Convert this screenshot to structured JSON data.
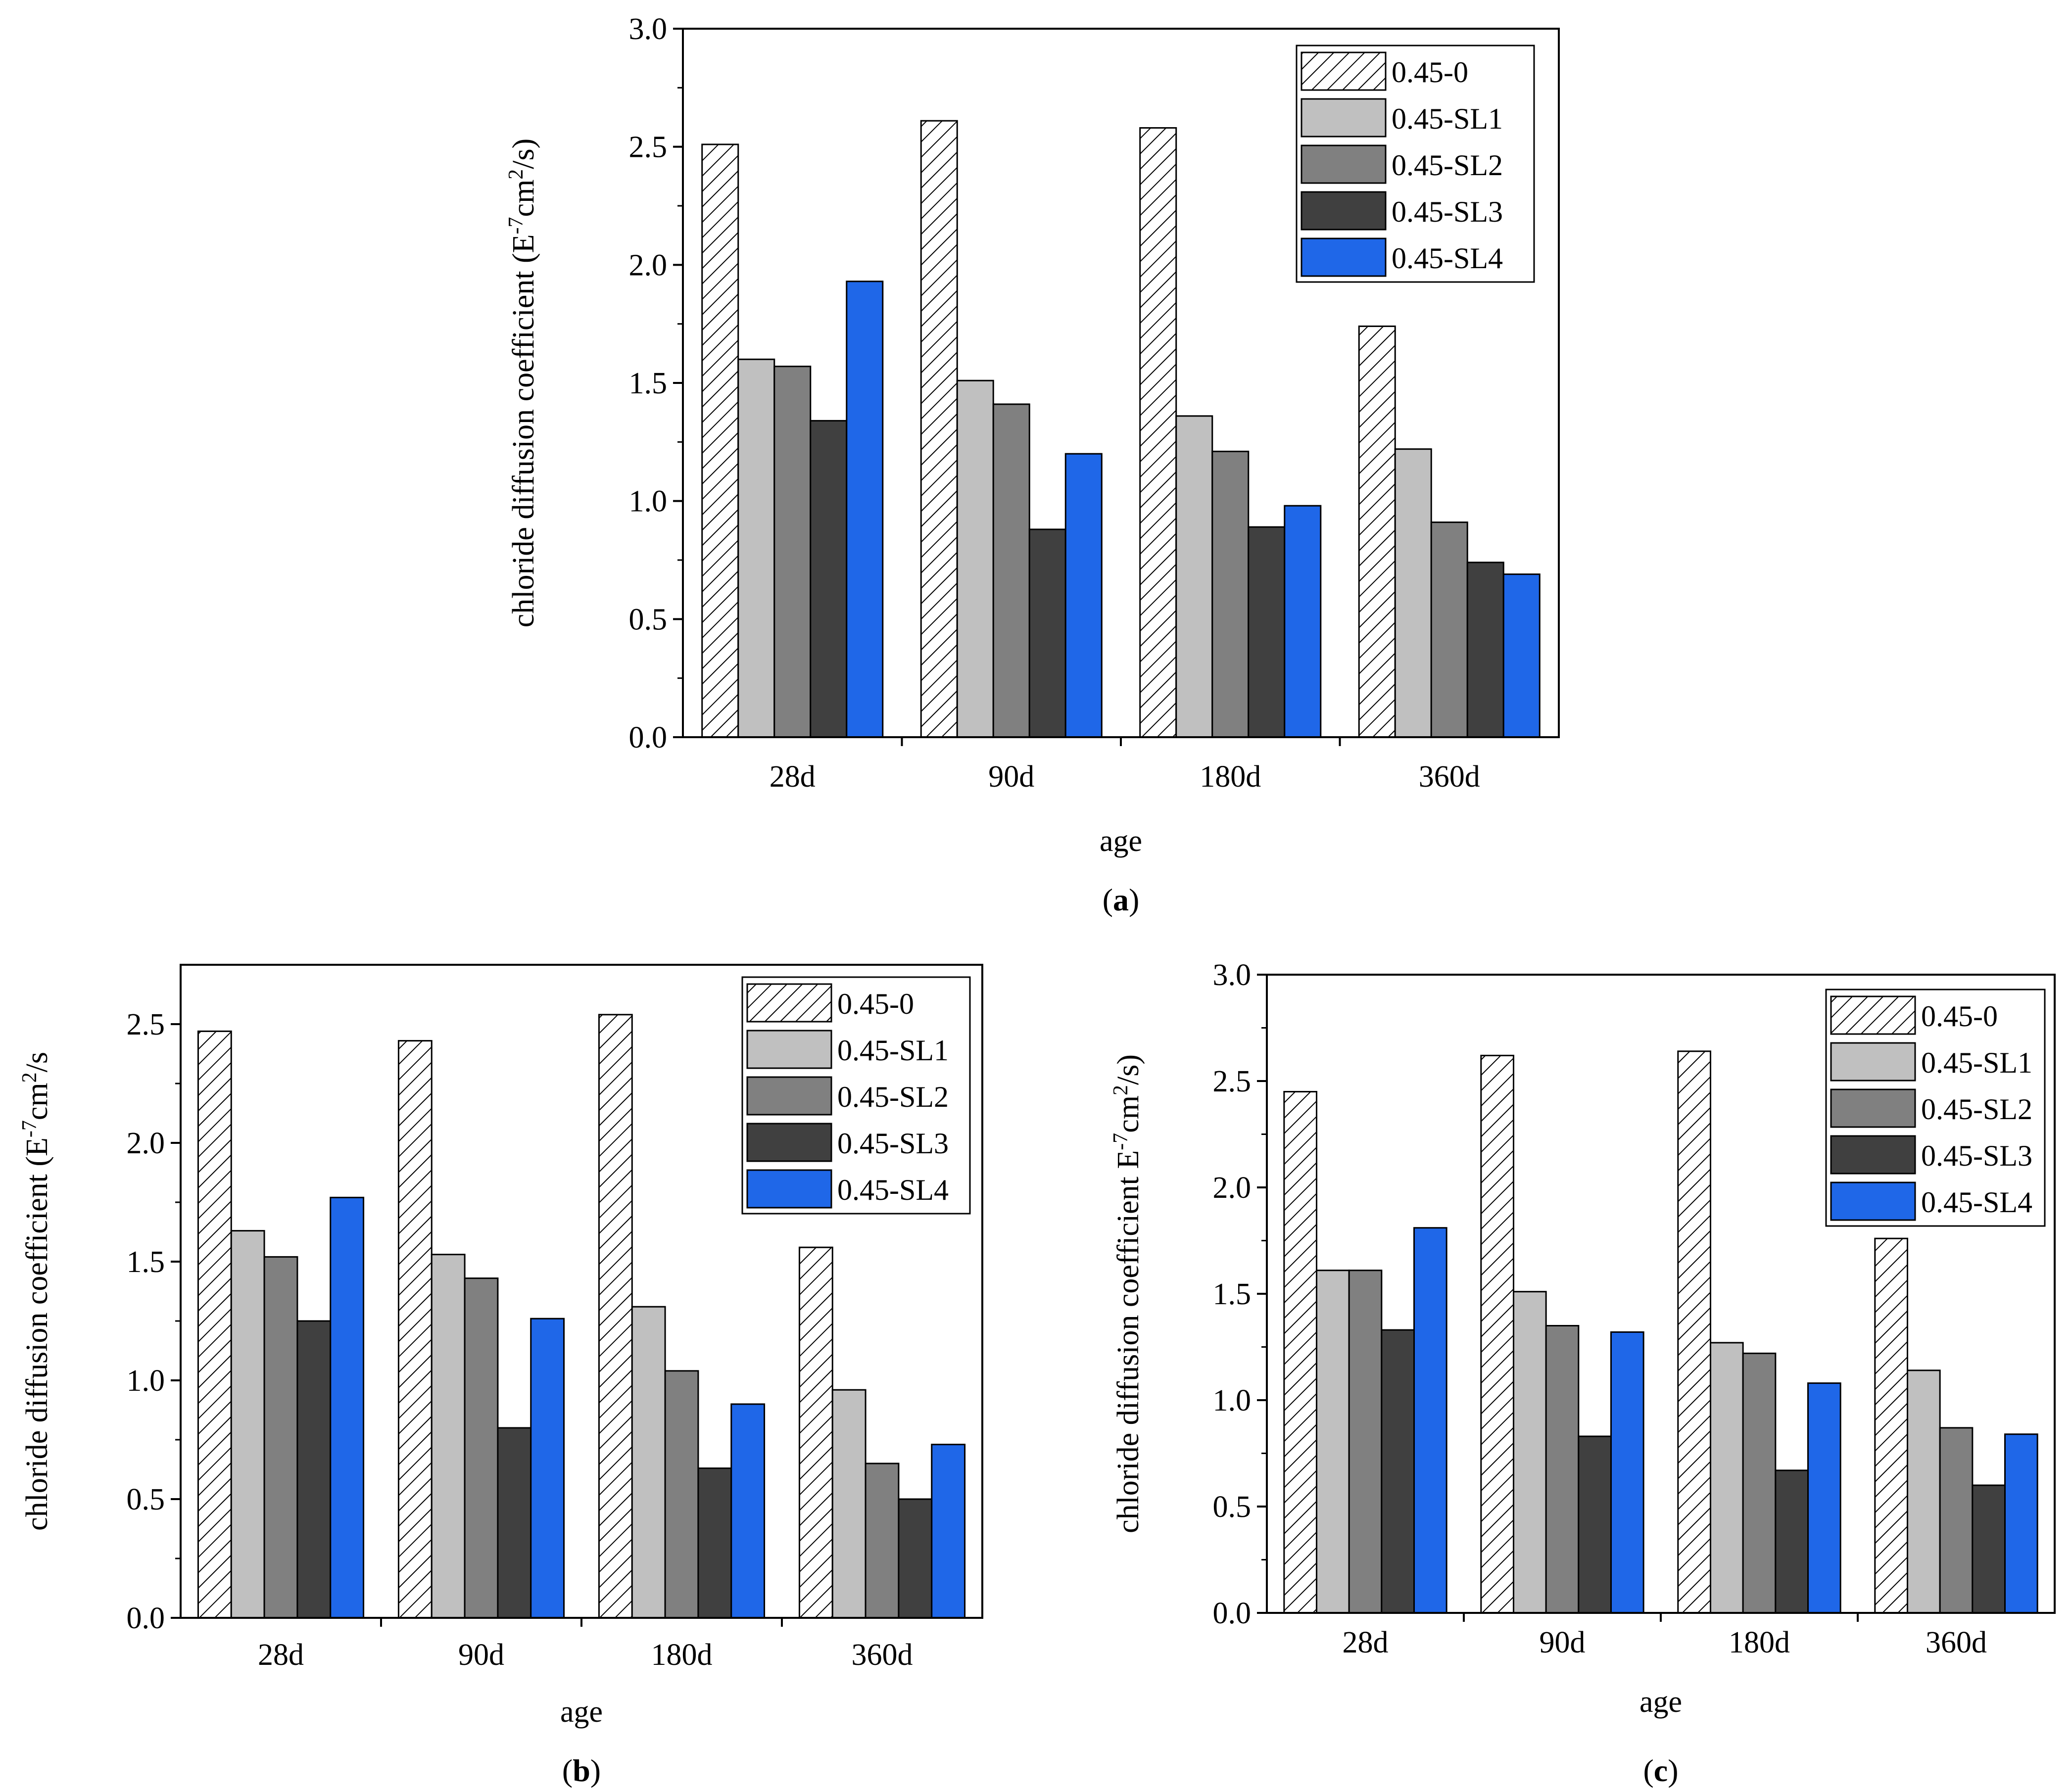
{
  "figure": {
    "legend_position": "top-right",
    "series_colors": [
      "hatch",
      "#c0c0c0",
      "#808080",
      "#404040",
      "#1f67e8"
    ]
  },
  "chart_data": [
    {
      "id": "a",
      "type": "bar",
      "panel_label_open": "(",
      "panel_label_letter": "a",
      "panel_label_close": ")",
      "title": "",
      "xlabel": "age",
      "ylabel_main": "chloride diffusion coefficient (E",
      "ylabel_sup1": "-7",
      "ylabel_mid": "cm",
      "ylabel_sup2": "2",
      "ylabel_end": "/s)",
      "categories": [
        "28d",
        "90d",
        "180d",
        "360d"
      ],
      "ylim": [
        0,
        3.0
      ],
      "yticks": [
        "0.0",
        "0.5",
        "1.0",
        "1.5",
        "2.0",
        "2.5",
        "3.0"
      ],
      "series": [
        {
          "name": "0.45-0",
          "values": [
            2.51,
            2.61,
            2.58,
            1.74
          ]
        },
        {
          "name": "0.45-SL1",
          "values": [
            1.6,
            1.51,
            1.36,
            1.22
          ]
        },
        {
          "name": "0.45-SL2",
          "values": [
            1.57,
            1.41,
            1.21,
            0.91
          ]
        },
        {
          "name": "0.45-SL3",
          "values": [
            1.34,
            0.88,
            0.89,
            0.74
          ]
        },
        {
          "name": "0.45-SL4",
          "values": [
            1.93,
            1.2,
            0.98,
            0.69
          ]
        }
      ]
    },
    {
      "id": "b",
      "type": "bar",
      "panel_label_open": "(",
      "panel_label_letter": "b",
      "panel_label_close": ")",
      "title": "",
      "xlabel": "age",
      "ylabel_main": "chloride diffusion coefficient (E",
      "ylabel_sup1": "-7",
      "ylabel_mid": "cm",
      "ylabel_sup2": "2",
      "ylabel_end": "/s",
      "categories": [
        "28d",
        "90d",
        "180d",
        "360d"
      ],
      "ylim": [
        0,
        2.75
      ],
      "yticks": [
        "0.0",
        "0.5",
        "1.0",
        "1.5",
        "2.0",
        "2.5"
      ],
      "series": [
        {
          "name": "0.45-0",
          "values": [
            2.47,
            2.43,
            2.54,
            1.56
          ]
        },
        {
          "name": "0.45-SL1",
          "values": [
            1.63,
            1.53,
            1.31,
            0.96
          ]
        },
        {
          "name": "0.45-SL2",
          "values": [
            1.52,
            1.43,
            1.04,
            0.65
          ]
        },
        {
          "name": "0.45-SL3",
          "values": [
            1.25,
            0.8,
            0.63,
            0.5
          ]
        },
        {
          "name": "0.45-SL4",
          "values": [
            1.77,
            1.26,
            0.9,
            0.73
          ]
        }
      ]
    },
    {
      "id": "c",
      "type": "bar",
      "panel_label_open": "(",
      "panel_label_letter": "c",
      "panel_label_close": ")",
      "title": "",
      "xlabel": "age",
      "ylabel_main": "chloride diffusion coefficient E",
      "ylabel_sup1": "-7",
      "ylabel_mid": "cm",
      "ylabel_sup2": "2",
      "ylabel_end": "/s)",
      "categories": [
        "28d",
        "90d",
        "180d",
        "360d"
      ],
      "ylim": [
        0,
        3.0
      ],
      "yticks": [
        "0.0",
        "0.5",
        "1.0",
        "1.5",
        "2.0",
        "2.5",
        "3.0"
      ],
      "series": [
        {
          "name": "0.45-0",
          "values": [
            2.45,
            2.62,
            2.64,
            1.76
          ]
        },
        {
          "name": "0.45-SL1",
          "values": [
            1.61,
            1.51,
            1.27,
            1.14
          ]
        },
        {
          "name": "0.45-SL2",
          "values": [
            1.61,
            1.35,
            1.22,
            0.87
          ]
        },
        {
          "name": "0.45-SL3",
          "values": [
            1.33,
            0.83,
            0.67,
            0.6
          ]
        },
        {
          "name": "0.45-SL4",
          "values": [
            1.81,
            1.32,
            1.08,
            0.84
          ]
        }
      ]
    }
  ]
}
